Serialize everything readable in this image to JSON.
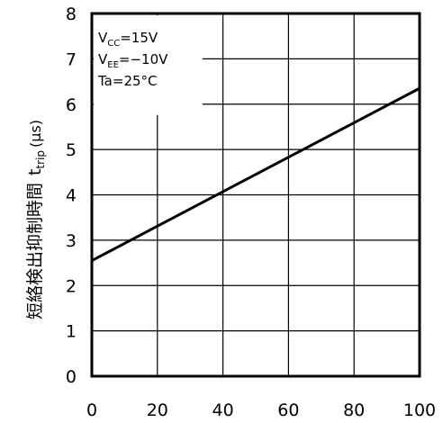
{
  "chart_data": {
    "type": "line",
    "title": "",
    "xlabel": "",
    "ylabel_main": "短絡検出抑制時間",
    "ylabel_sym": "t",
    "ylabel_sub": "trip",
    "ylabel_unit": "(μs)",
    "xlim": [
      0,
      100
    ],
    "ylim": [
      0,
      8
    ],
    "xticks": [
      0,
      20,
      40,
      60,
      80,
      100
    ],
    "yticks": [
      0,
      1,
      2,
      3,
      4,
      5,
      6,
      7,
      8
    ],
    "grid": true,
    "series": [
      {
        "x": [
          0,
          100
        ],
        "y": [
          2.55,
          6.35
        ]
      }
    ],
    "annotations": [
      {
        "base": "V",
        "sub": "CC",
        "rest": "=15V"
      },
      {
        "base": "V",
        "sub": "EE",
        "rest": "=−10V"
      },
      {
        "base": "Ta=25°C",
        "sub": "",
        "rest": ""
      }
    ],
    "colors": {
      "line": "#000000",
      "grid": "#000000",
      "background": "#ffffff"
    }
  }
}
